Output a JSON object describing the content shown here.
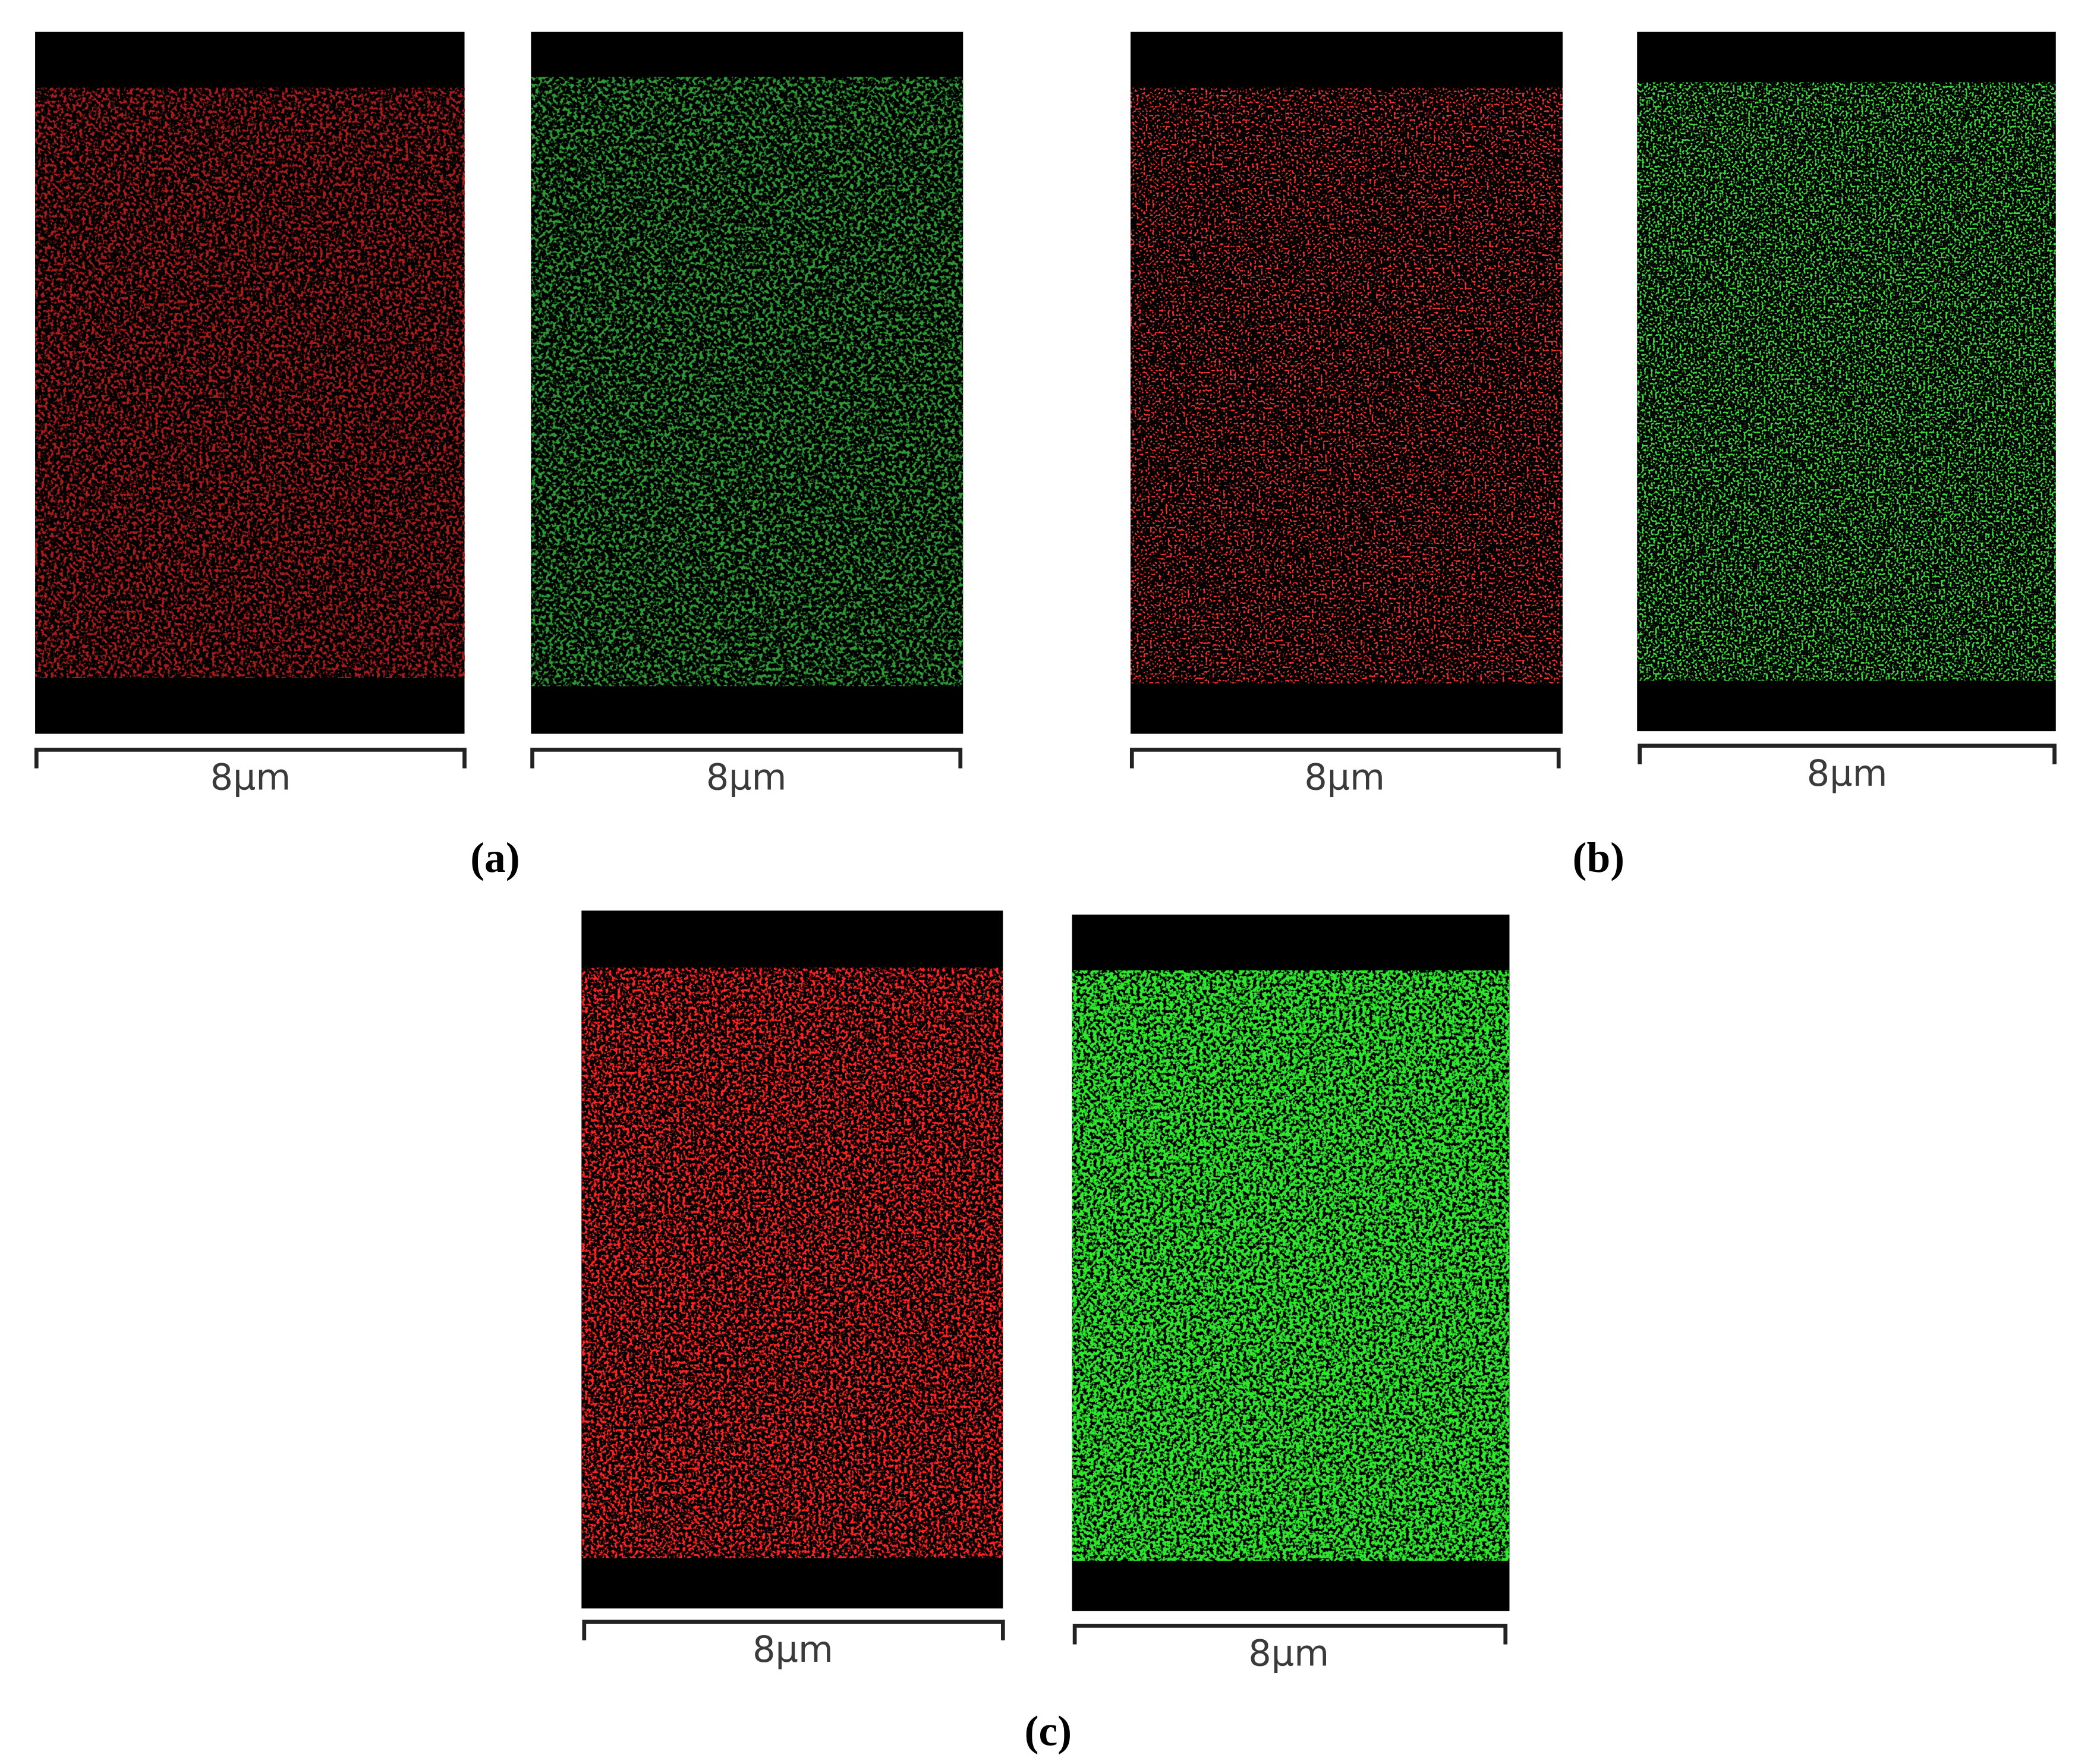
{
  "figure": {
    "panels": [
      {
        "label": "(a)",
        "maps": [
          {
            "scale": "8µm"
          },
          {
            "scale": "8µm"
          }
        ]
      },
      {
        "label": "(b)",
        "maps": [
          {
            "scale": "8µm"
          },
          {
            "scale": "8µm"
          }
        ]
      },
      {
        "label": "(c)",
        "maps": [
          {
            "scale": "8µm"
          },
          {
            "scale": "8µm"
          }
        ]
      }
    ]
  }
}
